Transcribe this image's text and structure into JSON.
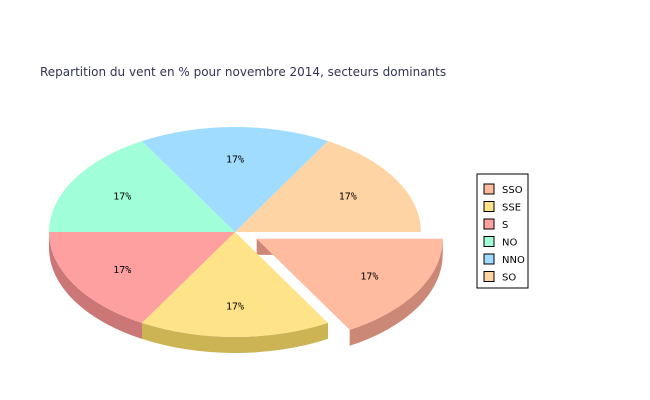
{
  "chart_data": {
    "type": "pie",
    "title": "Repartition du vent en % pour novembre 2014, secteurs dominants",
    "slices": [
      {
        "name": "SSO",
        "value": 17,
        "label": "17%",
        "color": "#ffbba0",
        "side_color": "#cc8877",
        "exploded": true
      },
      {
        "name": "SSE",
        "value": 17,
        "label": "17%",
        "color": "#ffe388",
        "side_color": "#ccb455",
        "exploded": false
      },
      {
        "name": "S",
        "value": 17,
        "label": "17%",
        "color": "#ffa0a0",
        "side_color": "#cc7777",
        "exploded": false
      },
      {
        "name": "NO",
        "value": 17,
        "label": "17%",
        "color": "#a0ffd8",
        "side_color": "#77ccaa",
        "exploded": false
      },
      {
        "name": "NNO",
        "value": 17,
        "label": "17%",
        "color": "#a0dcff",
        "side_color": "#77aacc",
        "exploded": false
      },
      {
        "name": "SO",
        "value": 17,
        "label": "17%",
        "color": "#ffd4a4",
        "side_color": "#cca077",
        "exploded": false
      }
    ],
    "legend": "right"
  }
}
